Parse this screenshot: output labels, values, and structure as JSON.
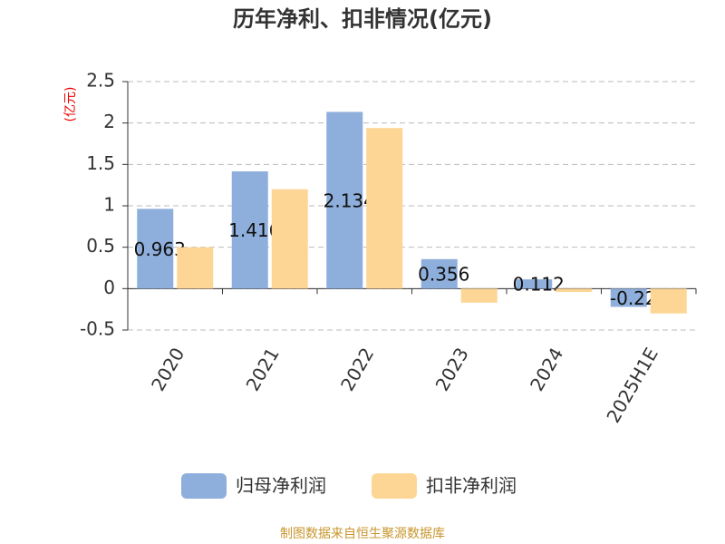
{
  "chart_data": {
    "type": "bar",
    "title": "历年净利、扣非情况(亿元)",
    "y_label": "(亿元)",
    "source": "制图数据来自恒生聚源数据库",
    "categories": [
      "2020",
      "2021",
      "2022",
      "2023",
      "2024",
      "2025H1E"
    ],
    "series": [
      {
        "name": "归母净利润",
        "color": "#8eaedb",
        "labels": true,
        "values": [
          0.963,
          1.416,
          2.134,
          0.356,
          0.112,
          -0.22
        ]
      },
      {
        "name": "扣非净利润",
        "color": "#fdd696",
        "labels": false,
        "values": [
          0.5,
          1.2,
          1.94,
          -0.17,
          -0.04,
          -0.3
        ]
      }
    ],
    "ylim": [
      -0.5,
      2.5
    ],
    "yticks": [
      -0.5,
      0,
      0.5,
      1,
      1.5,
      2,
      2.5
    ],
    "grid": true
  }
}
